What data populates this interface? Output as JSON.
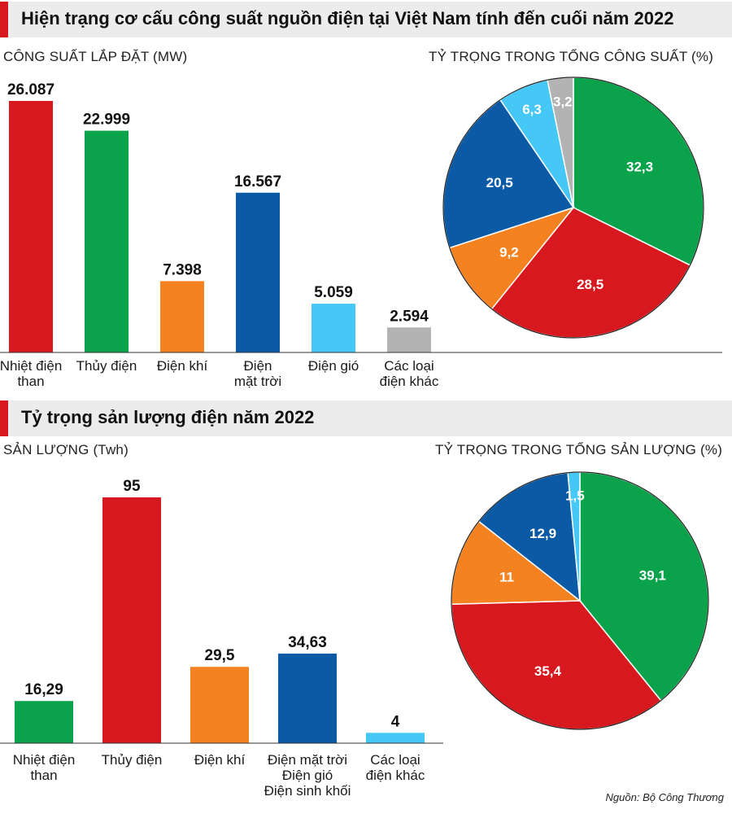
{
  "section1": {
    "title": "Hiện trạng cơ cấu công suất nguồn điện tại Việt Nam tính đến cuối năm 2022"
  },
  "section2": {
    "title": "Tỷ trọng sản lượng điện năm 2022"
  },
  "source": "Nguồn: Bộ Công Thương",
  "colors": {
    "red": "#d7191f",
    "green": "#0aa24b",
    "orange": "#f58220",
    "blue": "#0b5aa6",
    "lightblue": "#45c8f5",
    "gray": "#b3b3b3",
    "accent": "#d7191f",
    "header_bg": "#ececec"
  },
  "chart_data": [
    {
      "type": "bar",
      "title": "CÔNG SUẤT LẮP ĐẶT (MW)",
      "categories": [
        [
          "Nhiệt điện",
          "than"
        ],
        [
          "Thủy điện"
        ],
        [
          "Điện khí"
        ],
        [
          "Điện",
          "mặt trời"
        ],
        [
          "Điện gió"
        ],
        [
          "Các loại",
          "điện khác"
        ]
      ],
      "values": [
        26087,
        22999,
        7398,
        16567,
        5059,
        2594
      ],
      "value_labels": [
        "26.087",
        "22.999",
        "7.398",
        "16.567",
        "5.059",
        "2.594"
      ],
      "bar_colors": [
        "#d7191f",
        "#0aa24b",
        "#f58220",
        "#0b5aa6",
        "#45c8f5",
        "#b3b3b3"
      ],
      "ylim": [
        0,
        26087
      ]
    },
    {
      "type": "pie",
      "title": "TỶ TRỌNG TRONG TỔNG CÔNG SUẤT (%)",
      "values": [
        32.3,
        28.5,
        9.2,
        20.5,
        6.3,
        3.2
      ],
      "value_labels": [
        "32,3",
        "28,5",
        "9,2",
        "20,5",
        "6,3",
        "3,2"
      ],
      "slice_colors": [
        "#0aa24b",
        "#d7191f",
        "#f58220",
        "#0b5aa6",
        "#45c8f5",
        "#b3b3b3"
      ],
      "start": "12 o'clock",
      "direction": "clockwise"
    },
    {
      "type": "bar",
      "title": "SẢN LƯỢNG (Twh)",
      "categories": [
        [
          "Nhiệt điện",
          "than"
        ],
        [
          "Thủy điện"
        ],
        [
          "Điện khí"
        ],
        [
          "Điện mặt trời",
          "Điện gió",
          "Điện sinh khối"
        ],
        [
          "Các loại",
          "điện khác"
        ]
      ],
      "values": [
        16.29,
        95,
        29.5,
        34.63,
        4
      ],
      "value_labels": [
        "16,29",
        "95",
        "29,5",
        "34,63",
        "4"
      ],
      "bar_colors": [
        "#0aa24b",
        "#d7191f",
        "#f58220",
        "#0b5aa6",
        "#45c8f5"
      ],
      "ylim": [
        0,
        95
      ]
    },
    {
      "type": "pie",
      "title": "TỶ TRỌNG TRONG TỔNG SẢN LƯỢNG (%)",
      "values": [
        39.1,
        35.4,
        11,
        12.9,
        1.5
      ],
      "value_labels": [
        "39,1",
        "35,4",
        "11",
        "12,9",
        "1,5"
      ],
      "slice_colors": [
        "#0aa24b",
        "#d7191f",
        "#f58220",
        "#0b5aa6",
        "#45c8f5"
      ],
      "start": "12 o'clock",
      "direction": "clockwise"
    }
  ]
}
